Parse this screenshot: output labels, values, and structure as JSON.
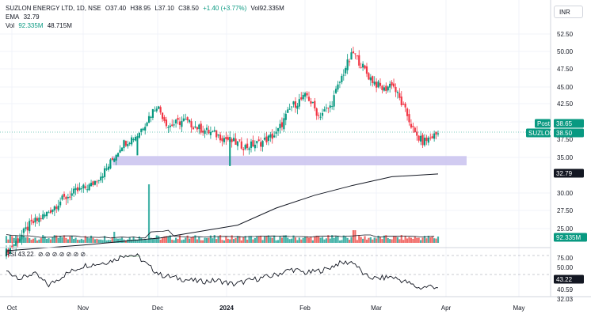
{
  "header": {
    "symbol": "SUZLON ENERGY LTD, 1D, NSE",
    "open": "O37.40",
    "high": "H38.95",
    "low": "L37.10",
    "close": "C38.50",
    "change": "+1.40 (+3.77%)",
    "vol_inline": "Vol92.335M",
    "ema_label": "EMA",
    "ema_value": "32.79",
    "vol_label": "Vol",
    "vol_value": "92.335M",
    "vol_ma": "48.715M",
    "currency": "INR"
  },
  "rsi_legend": "RSI 43.22",
  "colors": {
    "up": "#089981",
    "down": "#f23645",
    "ema": "#131722",
    "zone": "#c9c2ef",
    "grid": "#f0f3fa",
    "volume_up": "#26a69a",
    "volume_down": "#ef5350"
  },
  "chart_data": [
    {
      "type": "candlestick",
      "title": "SUZLON ENERGY LTD, 1D, NSE",
      "y_ticks": [
        "52.50",
        "50.00",
        "47.50",
        "45.00",
        "42.50",
        "40.00",
        "37.50",
        "35.00",
        "30.00",
        "27.50",
        "25.00"
      ],
      "x_ticks": [
        "Oct",
        "Nov",
        "Dec",
        "2024",
        "Feb",
        "Mar",
        "Apr",
        "May"
      ],
      "price_tags": [
        {
          "label": "Post",
          "value": "38.65"
        },
        {
          "label": "SUZLON",
          "value": "38.50"
        },
        {
          "label": "",
          "value": "32.79"
        },
        {
          "label": "",
          "value": "92.335M"
        }
      ],
      "support_zone": [
        34.0,
        35.3
      ],
      "ema_end": 32.79,
      "series": [
        {
          "name": "EMA",
          "values_anchor": [
            [
              0,
              22.0
            ],
            [
              40,
              22.8
            ],
            [
              80,
              23.8
            ],
            [
              120,
              25.6
            ],
            [
              140,
              28.0
            ],
            [
              160,
              29.8
            ],
            [
              180,
              31.2
            ],
            [
              200,
              32.4
            ],
            [
              224,
              32.79
            ]
          ]
        }
      ]
    },
    {
      "type": "line",
      "title": "RSI",
      "value": 43.22,
      "y_ticks": [
        "75.00",
        "50.00",
        "40.59",
        "32.03"
      ],
      "current_label": "43.22"
    }
  ]
}
